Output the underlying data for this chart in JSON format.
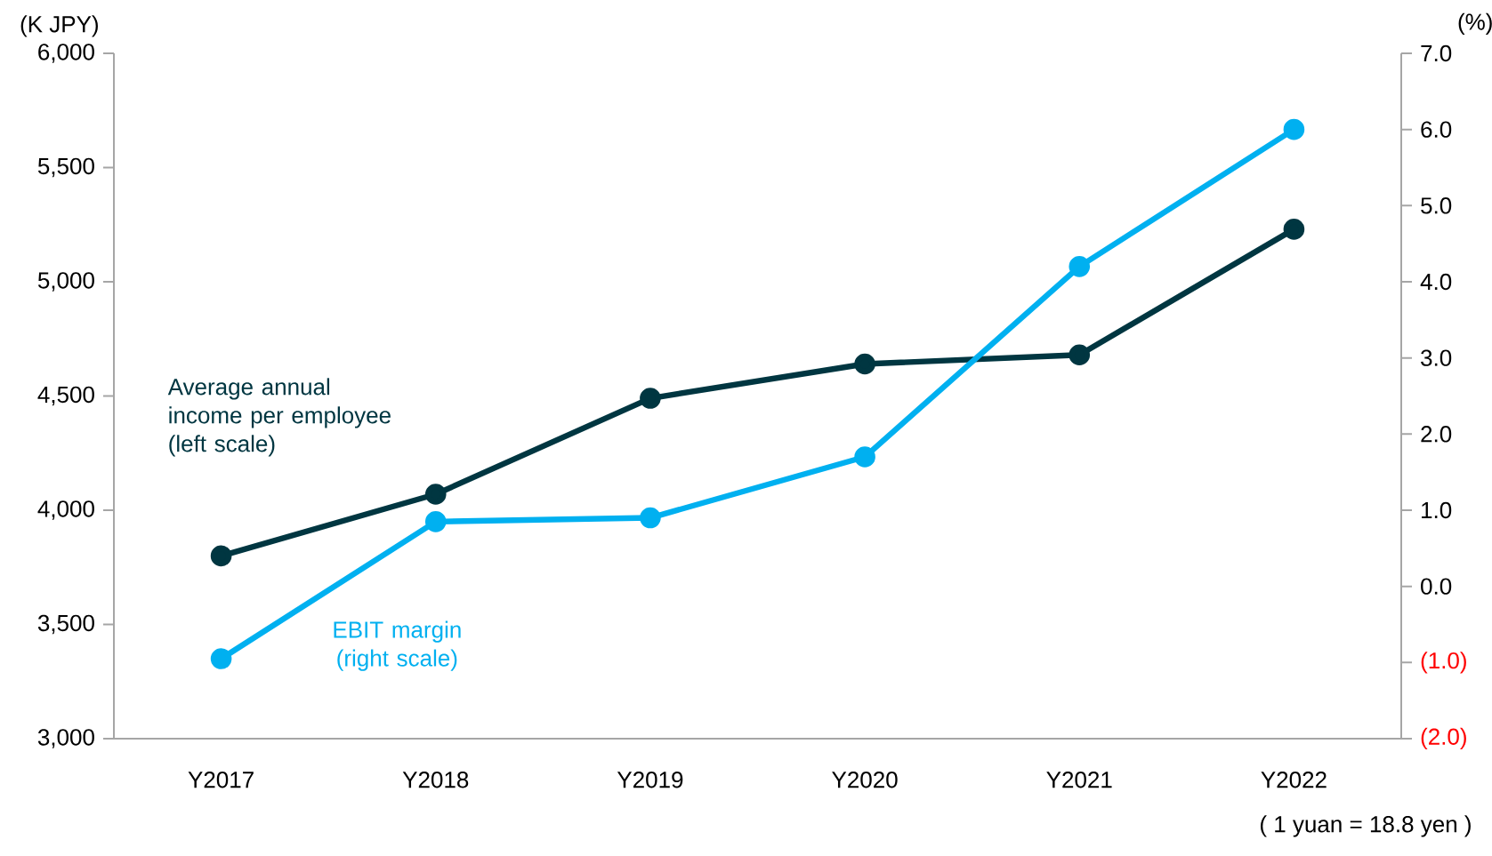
{
  "chart_data": {
    "type": "line",
    "categories": [
      "Y2017",
      "Y2018",
      "Y2019",
      "Y2020",
      "Y2021",
      "Y2022"
    ],
    "series": [
      {
        "name": "Average annual income per employee (left scale)",
        "color": "#003641",
        "values": [
          3800,
          4070,
          4490,
          4640,
          4680,
          5230
        ]
      },
      {
        "name": "EBIT margin (right scale)",
        "color": "#00b0f0",
        "axis": "y2",
        "values": [
          -0.95,
          0.85,
          0.9,
          1.7,
          4.2,
          6.0
        ]
      }
    ],
    "ylabel": "(K JPY)",
    "y2label": "(%)",
    "ylim": [
      3000,
      6000
    ],
    "yticks": [
      {
        "value": 3000,
        "label": "3,000"
      },
      {
        "value": 3500,
        "label": "3,500"
      },
      {
        "value": 4000,
        "label": "4,000"
      },
      {
        "value": 4500,
        "label": "4,500"
      },
      {
        "value": 5000,
        "label": "5,000"
      },
      {
        "value": 5500,
        "label": "5,500"
      },
      {
        "value": 6000,
        "label": "6,000"
      }
    ],
    "y2lim": [
      -2,
      7
    ],
    "y2ticks": [
      {
        "value": -2,
        "label": "(2.0)"
      },
      {
        "value": -1,
        "label": "(1.0)"
      },
      {
        "value": 0,
        "label": "0.0"
      },
      {
        "value": 1,
        "label": "1.0"
      },
      {
        "value": 2,
        "label": "2.0"
      },
      {
        "value": 3,
        "label": "3.0"
      },
      {
        "value": 4,
        "label": "4.0"
      },
      {
        "value": 5,
        "label": "5.0"
      },
      {
        "value": 6,
        "label": "6.0"
      },
      {
        "value": 7,
        "label": "7.0"
      }
    ],
    "annotations": [
      "( 1 yuan = 18.8 yen )"
    ],
    "marker": "circle",
    "line_style": "solid",
    "grid": false
  }
}
